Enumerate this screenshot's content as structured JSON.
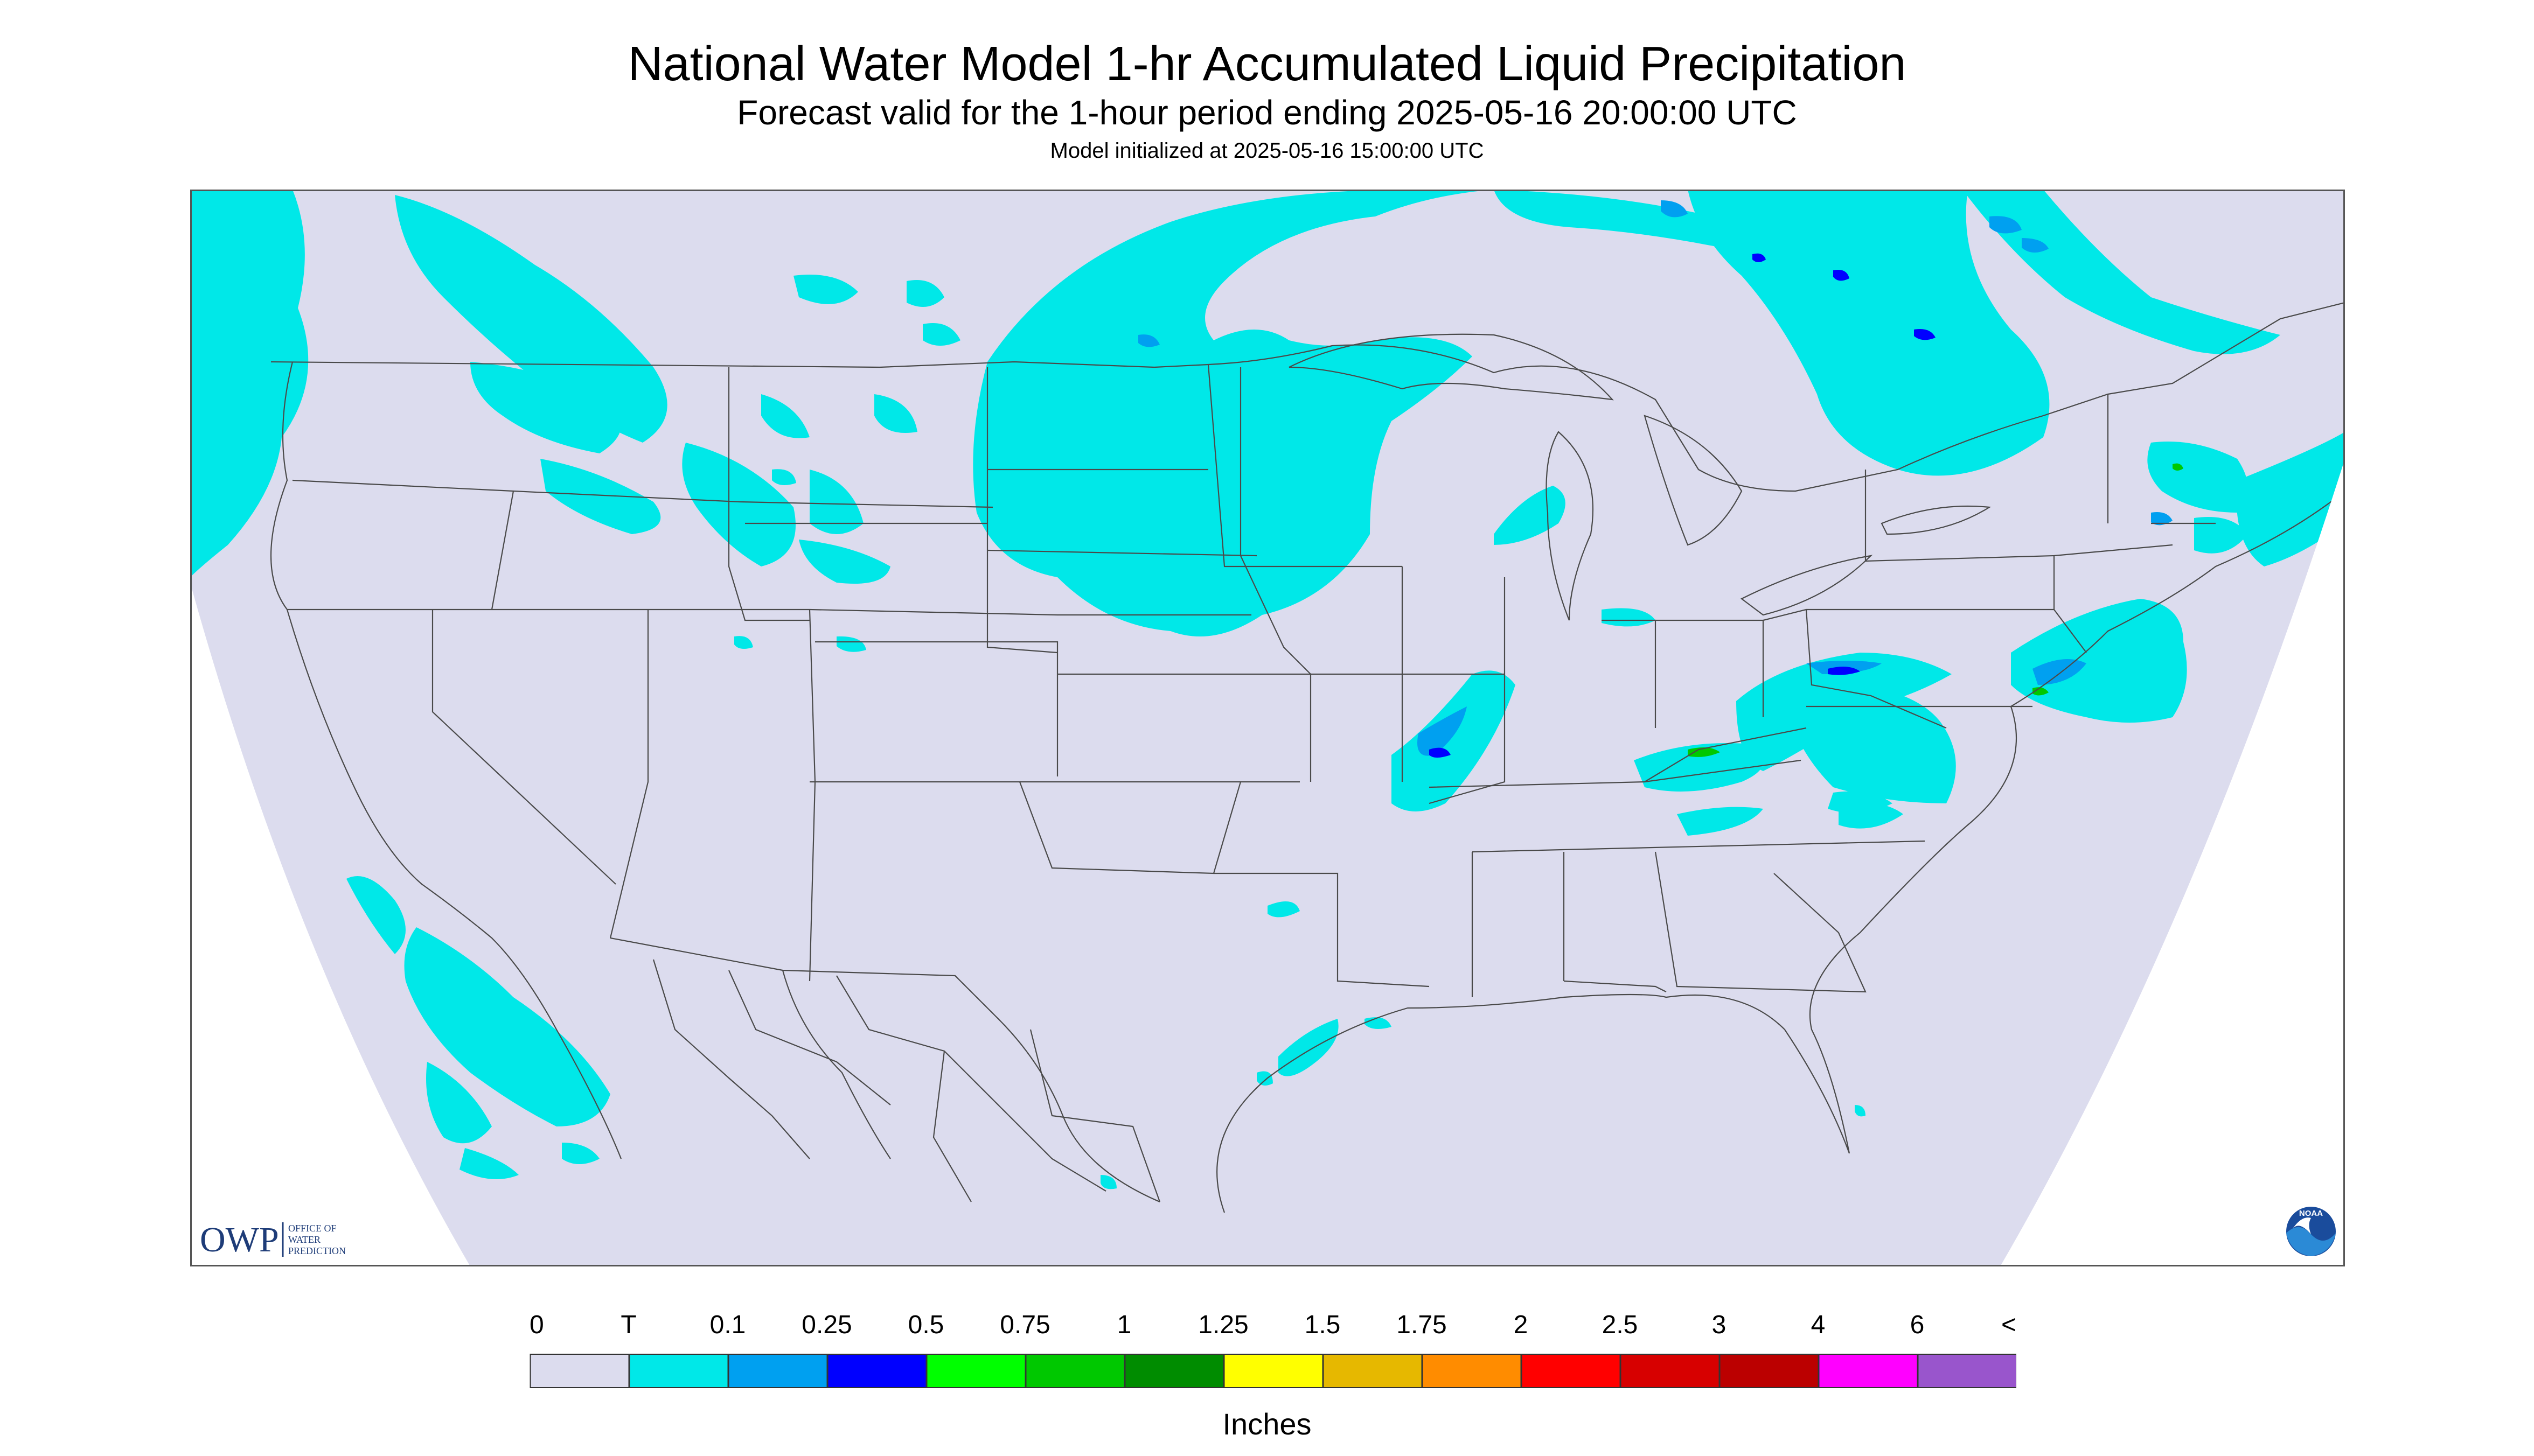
{
  "title": "National Water Model 1-hr Accumulated Liquid Precipitation",
  "subtitle": "Forecast valid for the 1-hour period ending 2025-05-16 20:00:00 UTC",
  "init_line": "Model initialized at 2025-05-16 15:00:00 UTC",
  "legend": {
    "labels": [
      "0",
      "T",
      "0.1",
      "0.25",
      "0.5",
      "0.75",
      "1",
      "1.25",
      "1.5",
      "1.75",
      "2",
      "2.5",
      "3",
      "4",
      "6",
      "<"
    ],
    "colors": [
      "#dcdcee",
      "#00e8e8",
      "#00a0f0",
      "#0000ff",
      "#00ff00",
      "#00c800",
      "#008c00",
      "#ffff00",
      "#e6b800",
      "#ff8c00",
      "#ff0000",
      "#d70000",
      "#bb0000",
      "#ff00ff",
      "#9955cc"
    ],
    "units": "Inches"
  },
  "logos": {
    "owp_abbrev": "OWP",
    "owp_name_line1": "OFFICE OF",
    "owp_name_line2": "WATER",
    "owp_name_line3": "PREDICTION",
    "noaa": "NOAA"
  },
  "map_colors": {
    "background": "#dcdcee",
    "trace": "#00e8e8",
    "light": "#00a0f0",
    "moderate": "#0000ff",
    "heavy": "#00c800"
  }
}
